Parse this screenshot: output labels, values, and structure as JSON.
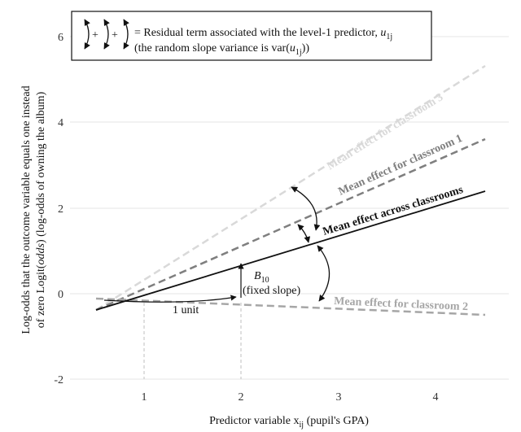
{
  "chart_data": {
    "type": "line",
    "xlabel": "Predictor variable x",
    "xlabel_sub": "ij",
    "xlabel_suffix": " (pupil's GPA)",
    "ylabel_line1": "Log-odds that the outcome variable  equals one instead",
    "ylabel_line2a": "of zero Logit(",
    "ylabel_line2b": "odds",
    "ylabel_line2c": ") (log-odds of owning the album)",
    "xlim": [
      0.5,
      4.85
    ],
    "ylim": [
      -2.2,
      6.6
    ],
    "xticks": [
      "1",
      "2",
      "3",
      "4"
    ],
    "yticks": [
      "-2",
      "0",
      "2",
      "4",
      "6"
    ],
    "grid": true,
    "series": [
      {
        "name": "Mean effect across classrooms",
        "x": [
          0.5,
          4.5
        ],
        "y": [
          -0.38,
          2.38
        ],
        "color": "#111111",
        "style": "solid"
      },
      {
        "name": "Mean effect for classroom 1",
        "x": [
          0.5,
          4.5
        ],
        "y": [
          -0.38,
          3.6
        ],
        "color": "#7f7f7f",
        "style": "dashed"
      },
      {
        "name": "Mean effect for classroom 2",
        "x": [
          0.5,
          4.5
        ],
        "y": [
          -0.1,
          -0.48
        ],
        "color": "#a6a6a6",
        "style": "dashed"
      },
      {
        "name": "Mean effect for classroom 3",
        "x": [
          0.5,
          4.5
        ],
        "y": [
          -0.38,
          5.3
        ],
        "color": "#d9d9d9",
        "style": "dashed"
      }
    ],
    "annotations": {
      "unit_label": "1 unit",
      "slope_symbol": "B",
      "slope_sub": "10",
      "slope_label": "(fixed slope)"
    },
    "legend": {
      "placement": "top",
      "line1_main": "= Residual term associated with the level-1 predictor, ",
      "line1_var": "u",
      "line1_sub": "1j",
      "line2_pre": "(the random slope variance is var(",
      "line2_var": "u",
      "line2_sub": "1j",
      "line2_post": "))",
      "plus1": "+",
      "plus2": "+"
    }
  }
}
